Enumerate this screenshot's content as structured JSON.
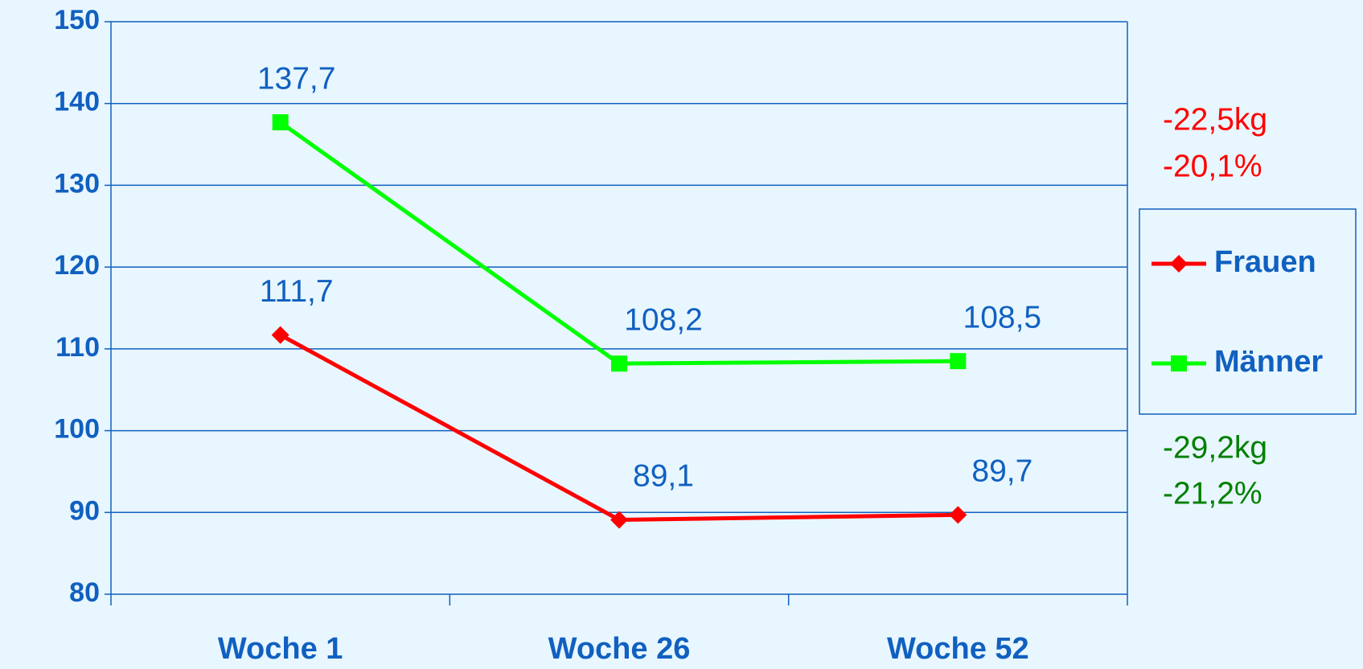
{
  "chart_data": {
    "type": "line",
    "categories": [
      "Woche 1",
      "Woche 26",
      "Woche 52"
    ],
    "series": [
      {
        "name": "Frauen",
        "color": "#ff0000",
        "marker": "diamond",
        "values": [
          111.7,
          89.1,
          89.7
        ],
        "value_labels": [
          "111,7",
          "89,1",
          "89,7"
        ]
      },
      {
        "name": "Männer",
        "color": "#00ff00",
        "marker": "square",
        "values": [
          137.7,
          108.2,
          108.5
        ],
        "value_labels": [
          "137,7",
          "108,2",
          "108,5"
        ]
      }
    ],
    "ylim": [
      80,
      150
    ],
    "yticks": [
      80,
      90,
      100,
      110,
      120,
      130,
      140,
      150
    ],
    "grid": true,
    "legend": "right",
    "annotations": [
      {
        "text": "-22,5kg",
        "color": "#ff0000"
      },
      {
        "text": "-20,1%",
        "color": "#ff0000"
      },
      {
        "text": "-29,2kg",
        "color": "#008000"
      },
      {
        "text": "-21,2%",
        "color": "#008000"
      }
    ]
  }
}
